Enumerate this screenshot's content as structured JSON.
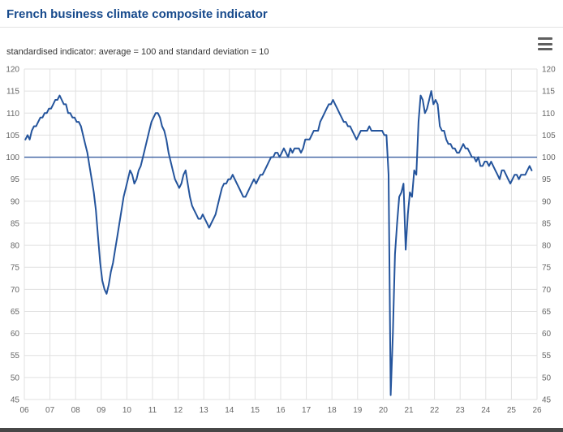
{
  "title": "French business climate composite indicator",
  "subtitle": "standardised indicator: average = 100 and standard deviation = 10",
  "toolbar": {
    "menu_icon": "hamburger-icon"
  },
  "colors": {
    "title": "#174a8c",
    "line": "#24549c",
    "plotline": "#3a5fa0",
    "grid": "#e0e0e0",
    "axis_label": "#666666"
  },
  "chart_data": {
    "type": "line",
    "title": "French business climate composite indicator",
    "subtitle": "standardised indicator: average = 100 and standard deviation = 10",
    "xlim": [
      2006,
      2026
    ],
    "ylim": [
      45,
      120
    ],
    "x_tick_labels": [
      "06",
      "07",
      "08",
      "09",
      "10",
      "11",
      "12",
      "13",
      "14",
      "15",
      "16",
      "17",
      "18",
      "19",
      "20",
      "21",
      "22",
      "23",
      "24",
      "25",
      "26"
    ],
    "y_ticks": [
      45,
      50,
      55,
      60,
      65,
      70,
      75,
      80,
      85,
      90,
      95,
      100,
      105,
      110,
      115,
      120
    ],
    "reference_line": 100,
    "grid": true,
    "legend": "none",
    "start_year": 2006,
    "frequency": "monthly",
    "series": [
      {
        "name": "business climate composite indicator",
        "color": "#24549c",
        "values": [
          104,
          105,
          104,
          106,
          107,
          107,
          108,
          109,
          109,
          110,
          110,
          111,
          111,
          112,
          113,
          113,
          114,
          113,
          112,
          112,
          110,
          110,
          109,
          109,
          108,
          108,
          107,
          105,
          103,
          101,
          98,
          95,
          92,
          88,
          82,
          76,
          72,
          70,
          69,
          71,
          74,
          76,
          79,
          82,
          85,
          88,
          91,
          93,
          95,
          97,
          96,
          94,
          95,
          97,
          98,
          100,
          102,
          104,
          106,
          108,
          109,
          110,
          110,
          109,
          107,
          106,
          104,
          101,
          99,
          97,
          95,
          94,
          93,
          94,
          96,
          97,
          94,
          91,
          89,
          88,
          87,
          86,
          86,
          87,
          86,
          85,
          84,
          85,
          86,
          87,
          89,
          91,
          93,
          94,
          94,
          95,
          95,
          96,
          95,
          94,
          93,
          92,
          91,
          91,
          92,
          93,
          94,
          95,
          94,
          95,
          96,
          96,
          97,
          98,
          99,
          100,
          100,
          101,
          101,
          100,
          101,
          102,
          101,
          100,
          102,
          101,
          102,
          102,
          102,
          101,
          102,
          104,
          104,
          104,
          105,
          106,
          106,
          106,
          108,
          109,
          110,
          111,
          112,
          112,
          113,
          112,
          111,
          110,
          109,
          108,
          108,
          107,
          107,
          106,
          105,
          104,
          105,
          106,
          106,
          106,
          106,
          107,
          106,
          106,
          106,
          106,
          106,
          106,
          105,
          105,
          96,
          46,
          60,
          78,
          85,
          91,
          92,
          94,
          79,
          87,
          92,
          91,
          97,
          96,
          108,
          114,
          113,
          110,
          111,
          113,
          115,
          112,
          113,
          112,
          107,
          106,
          106,
          104,
          103,
          103,
          102,
          102,
          101,
          101,
          102,
          103,
          102,
          102,
          101,
          100,
          100,
          99,
          100,
          98,
          98,
          99,
          99,
          98,
          99,
          98,
          97,
          96,
          95,
          97,
          97,
          96,
          95,
          94,
          95,
          96,
          96,
          95,
          96,
          96,
          96,
          97,
          98,
          97
        ]
      }
    ]
  }
}
